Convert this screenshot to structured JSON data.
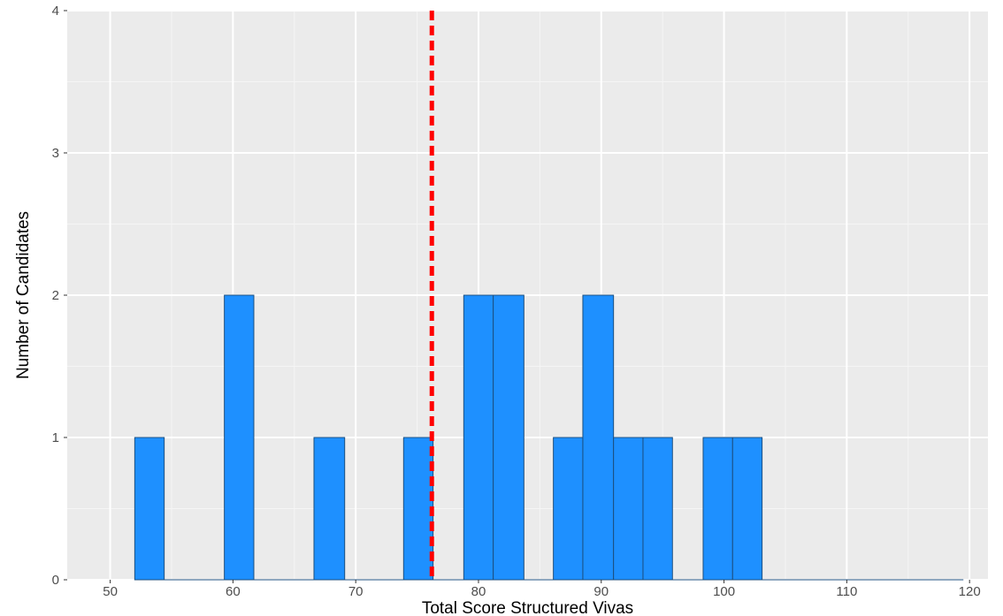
{
  "chart_data": {
    "type": "bar",
    "xlabel": "Total Score Structured Vivas",
    "ylabel": "Number of Candidates",
    "xlim": [
      46.5,
      121.5
    ],
    "ylim": [
      0,
      4
    ],
    "x_ticks": [
      50,
      60,
      70,
      80,
      90,
      100,
      110,
      120
    ],
    "y_ticks": [
      0,
      1,
      2,
      3,
      4
    ],
    "x_tick_labels": [
      "50",
      "60",
      "70",
      "80",
      "90",
      "100",
      "110",
      "120"
    ],
    "y_tick_labels": [
      "0",
      "1",
      "2",
      "3",
      "4"
    ],
    "bins": [
      {
        "start": 52.0,
        "end": 54.4,
        "count": 1
      },
      {
        "start": 54.4,
        "end": 56.9,
        "count": 0
      },
      {
        "start": 56.9,
        "end": 59.3,
        "count": 0
      },
      {
        "start": 59.3,
        "end": 61.7,
        "count": 2
      },
      {
        "start": 61.7,
        "end": 64.2,
        "count": 0
      },
      {
        "start": 64.2,
        "end": 66.6,
        "count": 0
      },
      {
        "start": 66.6,
        "end": 69.1,
        "count": 1
      },
      {
        "start": 69.1,
        "end": 71.5,
        "count": 0
      },
      {
        "start": 71.5,
        "end": 73.9,
        "count": 0
      },
      {
        "start": 73.9,
        "end": 76.3,
        "count": 1
      },
      {
        "start": 76.3,
        "end": 78.8,
        "count": 0
      },
      {
        "start": 78.8,
        "end": 81.2,
        "count": 2
      },
      {
        "start": 81.2,
        "end": 83.7,
        "count": 2
      },
      {
        "start": 83.7,
        "end": 86.1,
        "count": 0
      },
      {
        "start": 86.1,
        "end": 88.5,
        "count": 1
      },
      {
        "start": 88.5,
        "end": 91.0,
        "count": 2
      },
      {
        "start": 91.0,
        "end": 93.4,
        "count": 1
      },
      {
        "start": 93.4,
        "end": 95.8,
        "count": 1
      },
      {
        "start": 95.8,
        "end": 98.3,
        "count": 0
      },
      {
        "start": 98.3,
        "end": 100.7,
        "count": 1
      },
      {
        "start": 100.7,
        "end": 103.1,
        "count": 1
      },
      {
        "start": 103.1,
        "end": 119.5,
        "count": 0
      }
    ],
    "reference_line": {
      "x": 76.2,
      "style": "dashed",
      "color": "#ff0000"
    },
    "bar_color": "#1e90ff",
    "bar_edge_color": "#1c4f7f",
    "panel_background": "#ebebeb",
    "grid": true,
    "legend": "none"
  }
}
